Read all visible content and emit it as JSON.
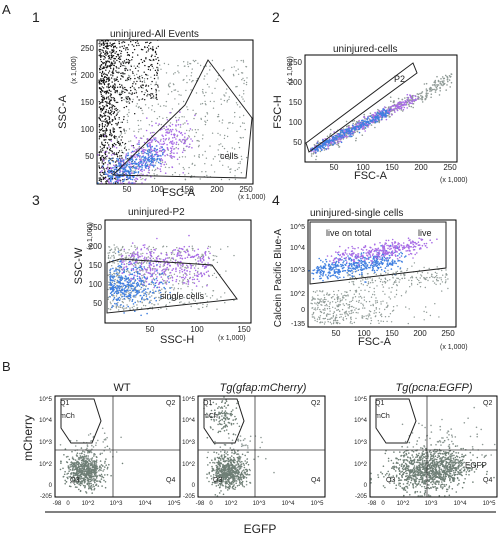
{
  "figure": {
    "section_a_label": "A",
    "section_b_label": "B",
    "colors": {
      "black": "#111111",
      "gray": "#8f9a96",
      "purple": "#a86ce6",
      "blue": "#3f7fe0",
      "green_gray": "#6f7f76"
    }
  },
  "chart_data": [
    {
      "type": "scatter",
      "panel": "1",
      "title": "uninjured-All Events",
      "xlabel": "FSC-A",
      "ylabel": "SSC-A",
      "x_unit": "(x 1,000)",
      "y_unit": "(x 1,000)",
      "xlim": [
        0,
        262
      ],
      "ylim": [
        0,
        262
      ],
      "x_ticks": [
        "50",
        "100",
        "150",
        "200",
        "250"
      ],
      "y_ticks": [
        "50",
        "100",
        "150",
        "200",
        "250"
      ],
      "gates": [
        {
          "label": "cells",
          "vertices": [
            [
              25,
              20
            ],
            [
              150,
              170
            ],
            [
              205,
              225
            ],
            [
              250,
              115
            ],
            [
              140,
              20
            ]
          ]
        }
      ],
      "series": [
        {
          "color": "#111111",
          "region": "x 10-60, y 20-262, dense near x axis"
        },
        {
          "color": "#8f9a96",
          "region": "x 30-250, y 20-230"
        },
        {
          "color": "#a86ce6",
          "region": "x 40-160, y 20-120"
        },
        {
          "color": "#3f7fe0",
          "region": "x 30-120, y 20-80"
        }
      ]
    },
    {
      "type": "scatter",
      "panel": "2",
      "title": "uninjured-cells",
      "xlabel": "FSC-A",
      "ylabel": "FSC-H",
      "x_unit": "(x 1,000)",
      "y_unit": "(x 1,000)",
      "xlim": [
        0,
        262
      ],
      "ylim": [
        0,
        262
      ],
      "x_ticks": [
        "50",
        "100",
        "150",
        "200",
        "250"
      ],
      "y_ticks": [
        "50",
        "100",
        "150",
        "200",
        "250"
      ],
      "gates": [
        {
          "label": "P2",
          "vertices": [
            [
              15,
              40
            ],
            [
              20,
              25
            ],
            [
              185,
              165
            ],
            [
              175,
              190
            ]
          ]
        }
      ],
      "series": [
        {
          "color": "#8f9a96",
          "region": "diagonal band x 20-250"
        },
        {
          "color": "#a86ce6",
          "region": "diagonal band x 25-170"
        },
        {
          "color": "#3f7fe0",
          "region": "diagonal band x 25-120"
        }
      ]
    },
    {
      "type": "scatter",
      "panel": "3",
      "title": "uninjured-P2",
      "xlabel": "SSC-H",
      "ylabel": "SSC-W",
      "x_unit": "(x 1,000)",
      "y_unit": "(x 1,000)",
      "xlim": [
        0,
        155
      ],
      "ylim": [
        0,
        262
      ],
      "x_ticks": [
        "50",
        "100",
        "150"
      ],
      "y_ticks": [
        "50",
        "100",
        "150",
        "200",
        "250"
      ],
      "gates": [
        {
          "label": "single cells",
          "vertices": [
            [
              5,
              15
            ],
            [
              5,
              120
            ],
            [
              30,
              130
            ],
            [
              120,
              110
            ],
            [
              145,
              25
            ]
          ]
        }
      ],
      "series": [
        {
          "color": "#8f9a96",
          "region": "x 5-140, y 20-180"
        },
        {
          "color": "#a86ce6",
          "region": "x 20-110, y 40-130"
        },
        {
          "color": "#3f7fe0",
          "region": "x 10-80, y 30-110"
        }
      ]
    },
    {
      "type": "scatter",
      "panel": "4",
      "title": "uninjured-single cells",
      "xlabel": "FSC-A",
      "ylabel": "Calcein Pacific Blue-A",
      "x_unit": "(x 1,000)",
      "xlim": [
        0,
        262
      ],
      "y_scale": "log",
      "x_ticks": [
        "50",
        "100",
        "150",
        "200",
        "250"
      ],
      "y_ticks": [
        "-135",
        "0",
        "10^2",
        "10^3",
        "10^4",
        "10^5"
      ],
      "gates": [
        {
          "label": "live on total",
          "second_label": "live",
          "vertices": [
            [
              5,
              600
            ],
            [
              255,
              1900
            ],
            [
              255,
              200000
            ],
            [
              5,
              200000
            ]
          ]
        }
      ],
      "series": [
        {
          "color": "#8f9a96",
          "region": "x 5-250, y -135 to 10^3"
        },
        {
          "color": "#3f7fe0",
          "region": "x 20-150, y 10^3 to 10^4"
        },
        {
          "color": "#a86ce6",
          "region": "x 40-150, y 10^3.5 to 10^4.5"
        }
      ]
    },
    {
      "type": "scatter",
      "panel": "B-WT",
      "title": "WT",
      "xlabel": "EGFP",
      "ylabel": "mCherry",
      "y_scale": "log",
      "x_scale": "log",
      "x_ticks": [
        "-98",
        "0",
        "10^2",
        "10^3",
        "10^4",
        "10^5"
      ],
      "y_ticks": [
        "-205",
        "0",
        "10^2",
        "10^3",
        "10^4",
        "10^5"
      ],
      "quadrants": [
        "Q1",
        "Q2",
        "Q3",
        "Q4"
      ],
      "gate_label": "mCh",
      "series": [
        {
          "color": "#6f7f76",
          "region": "Q3 cluster"
        }
      ]
    },
    {
      "type": "scatter",
      "panel": "B-gfap",
      "title": "Tg(gfap:mCherry)",
      "xlabel": "EGFP",
      "ylabel": "mCherry",
      "y_scale": "log",
      "x_scale": "log",
      "x_ticks": [
        "-98",
        "0",
        "10^2",
        "10^3",
        "10^4",
        "10^5"
      ],
      "y_ticks": [
        "-205",
        "0",
        "10^2",
        "10^3",
        "10^4",
        "10^5"
      ],
      "quadrants": [
        "Q1",
        "Q2",
        "Q3",
        "Q4"
      ],
      "gate_label": "mCh",
      "series": [
        {
          "color": "#6f7f76",
          "region": "Q3 cluster and Q1 mCh population"
        }
      ]
    },
    {
      "type": "scatter",
      "panel": "B-pcna",
      "title": "Tg(pcna:EGFP)",
      "xlabel": "EGFP",
      "ylabel": "mCherry",
      "y_scale": "log",
      "x_scale": "log",
      "x_ticks": [
        "-98",
        "0",
        "10^2",
        "10^3",
        "10^4",
        "10^5"
      ],
      "y_ticks": [
        "-205",
        "0",
        "10^2",
        "10^3",
        "10^4",
        "10^5"
      ],
      "quadrants": [
        "Q1",
        "Q2",
        "Q3",
        "Q4"
      ],
      "gate_label": "mCh",
      "extra_label": "EGFP",
      "series": [
        {
          "color": "#6f7f76",
          "region": "Q3 and Q4 wide cluster"
        }
      ]
    }
  ],
  "section_b": {
    "y_axis_label": "mCherry",
    "x_axis_label": "EGFP"
  }
}
